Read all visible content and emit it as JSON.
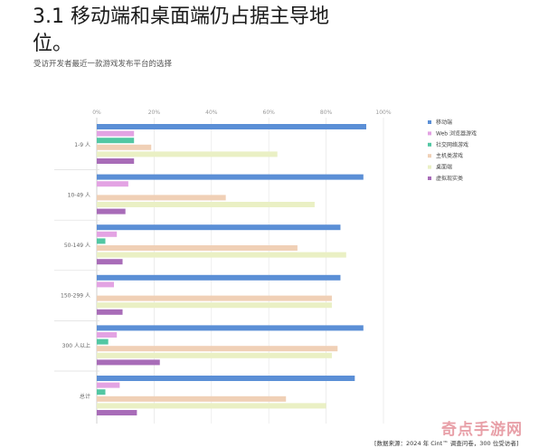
{
  "page": {
    "title": "3.1 移动端和桌面端仍占据主导地位。",
    "subtitle": "受访开发者最近一款游戏发布平台的选择",
    "source": "[数据来源：2024 年 Cint™ 调查问卷，300 位受访者]",
    "watermark": "奇点手游网"
  },
  "chart_data": {
    "type": "bar",
    "orientation": "horizontal",
    "title": "",
    "xlabel": "",
    "ylabel": "",
    "xlim": [
      0,
      100
    ],
    "x_ticks": [
      "0%",
      "20%",
      "40%",
      "60%",
      "80%",
      "100%"
    ],
    "grid": true,
    "legend_position": "top-right",
    "categories": [
      "1-9 人",
      "10-49 人",
      "50-149 人",
      "150-299 人",
      "300 人以上",
      "总计"
    ],
    "series": [
      {
        "name": "移动端",
        "color": "#5b8fd6",
        "values": [
          94,
          93,
          85,
          85,
          93,
          90
        ]
      },
      {
        "name": "Web 浏览器游戏",
        "color": "#e3a3e3",
        "values": [
          13,
          11,
          7,
          6,
          7,
          8
        ]
      },
      {
        "name": "社交网络游戏",
        "color": "#52c7a3",
        "values": [
          13,
          0,
          3,
          0,
          4,
          3
        ]
      },
      {
        "name": "主机类游戏",
        "color": "#f0d0b6",
        "values": [
          19,
          45,
          70,
          82,
          84,
          66
        ]
      },
      {
        "name": "桌面端",
        "color": "#eaf0c4",
        "values": [
          63,
          76,
          87,
          82,
          82,
          80
        ]
      },
      {
        "name": "虚拟现实类",
        "color": "#a86cb8",
        "values": [
          13,
          10,
          9,
          9,
          22,
          14
        ]
      }
    ]
  }
}
